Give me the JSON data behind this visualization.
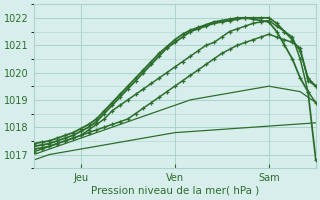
{
  "title": "",
  "xlabel": "Pression niveau de la mer( hPa )",
  "ylabel": "",
  "bg_color": "#d8eeec",
  "grid_color": "#aad4cc",
  "line_color": "#2d6e2d",
  "marker_color": "#2d6e2d",
  "xlim": [
    0,
    72
  ],
  "ylim": [
    1016.5,
    1022.5
  ],
  "yticks": [
    1017,
    1018,
    1019,
    1020,
    1021,
    1022
  ],
  "xtick_positions": [
    12,
    36,
    60,
    72
  ],
  "xtick_labels": [
    "Jeu",
    "Ven",
    "Sam",
    ""
  ],
  "series": [
    {
      "x": [
        0,
        2,
        4,
        6,
        8,
        10,
        12,
        14,
        16,
        18,
        20,
        22,
        24,
        26,
        28,
        30,
        32,
        34,
        36,
        38,
        40,
        42,
        44,
        46,
        48,
        50,
        52,
        54,
        56,
        58,
        60,
        62,
        64,
        66,
        68,
        70,
        72
      ],
      "y": [
        1016.8,
        1016.9,
        1017.0,
        1017.05,
        1017.1,
        1017.15,
        1017.2,
        1017.25,
        1017.3,
        1017.35,
        1017.4,
        1017.45,
        1017.5,
        1017.55,
        1017.6,
        1017.65,
        1017.7,
        1017.75,
        1017.8,
        1017.82,
        1017.84,
        1017.86,
        1017.88,
        1017.9,
        1017.92,
        1017.94,
        1017.96,
        1017.98,
        1018.0,
        1018.02,
        1018.04,
        1018.06,
        1018.08,
        1018.1,
        1018.12,
        1018.14,
        1018.16
      ],
      "marker": false,
      "linewidth": 0.9
    },
    {
      "x": [
        0,
        2,
        4,
        6,
        8,
        10,
        12,
        14,
        16,
        18,
        20,
        22,
        24,
        26,
        28,
        30,
        32,
        34,
        36,
        38,
        40,
        42,
        44,
        46,
        48,
        50,
        52,
        54,
        56,
        58,
        60,
        62,
        64,
        66,
        68,
        70,
        72
      ],
      "y": [
        1017.0,
        1017.1,
        1017.2,
        1017.3,
        1017.4,
        1017.5,
        1017.6,
        1017.7,
        1017.8,
        1017.9,
        1018.0,
        1018.1,
        1018.2,
        1018.3,
        1018.4,
        1018.5,
        1018.6,
        1018.7,
        1018.8,
        1018.9,
        1019.0,
        1019.05,
        1019.1,
        1019.15,
        1019.2,
        1019.25,
        1019.3,
        1019.35,
        1019.4,
        1019.45,
        1019.5,
        1019.45,
        1019.4,
        1019.35,
        1019.3,
        1019.1,
        1018.9
      ],
      "marker": false,
      "linewidth": 0.9
    },
    {
      "x": [
        0,
        2,
        4,
        6,
        8,
        10,
        12,
        14,
        16,
        18,
        20,
        22,
        24,
        26,
        28,
        30,
        32,
        34,
        36,
        38,
        40,
        42,
        44,
        46,
        48,
        50,
        52,
        54,
        56,
        58,
        60,
        62,
        64,
        66,
        68,
        70,
        72
      ],
      "y": [
        1017.1,
        1017.2,
        1017.3,
        1017.4,
        1017.5,
        1017.6,
        1017.7,
        1017.8,
        1017.9,
        1018.0,
        1018.1,
        1018.2,
        1018.3,
        1018.5,
        1018.7,
        1018.9,
        1019.1,
        1019.3,
        1019.5,
        1019.7,
        1019.9,
        1020.1,
        1020.3,
        1020.5,
        1020.7,
        1020.85,
        1021.0,
        1021.1,
        1021.2,
        1021.3,
        1021.4,
        1021.3,
        1021.2,
        1021.1,
        1020.9,
        1019.7,
        1019.5
      ],
      "marker": true,
      "linewidth": 1.1
    },
    {
      "x": [
        0,
        2,
        4,
        6,
        8,
        10,
        12,
        14,
        16,
        18,
        20,
        22,
        24,
        26,
        28,
        30,
        32,
        34,
        36,
        38,
        40,
        42,
        44,
        46,
        48,
        50,
        52,
        54,
        56,
        58,
        60,
        62,
        64,
        66,
        68,
        70,
        72
      ],
      "y": [
        1017.2,
        1017.25,
        1017.3,
        1017.4,
        1017.5,
        1017.6,
        1017.7,
        1017.9,
        1018.1,
        1018.3,
        1018.6,
        1018.8,
        1019.0,
        1019.2,
        1019.4,
        1019.6,
        1019.8,
        1020.0,
        1020.2,
        1020.4,
        1020.6,
        1020.8,
        1021.0,
        1021.1,
        1021.3,
        1021.5,
        1021.6,
        1021.7,
        1021.8,
        1021.85,
        1021.9,
        1021.7,
        1021.5,
        1021.3,
        1020.5,
        1019.3,
        1018.9
      ],
      "marker": true,
      "linewidth": 1.1
    },
    {
      "x": [
        0,
        2,
        4,
        6,
        8,
        10,
        12,
        14,
        16,
        18,
        20,
        22,
        24,
        26,
        28,
        30,
        32,
        34,
        36,
        38,
        40,
        42,
        44,
        46,
        48,
        50,
        52,
        54,
        56,
        58,
        60,
        62,
        64,
        66,
        68,
        70,
        72
      ],
      "y": [
        1017.3,
        1017.35,
        1017.4,
        1017.5,
        1017.6,
        1017.7,
        1017.85,
        1018.0,
        1018.2,
        1018.5,
        1018.8,
        1019.1,
        1019.4,
        1019.7,
        1020.0,
        1020.3,
        1020.6,
        1020.9,
        1021.1,
        1021.3,
        1021.5,
        1021.6,
        1021.7,
        1021.8,
        1021.85,
        1021.9,
        1021.95,
        1022.0,
        1022.0,
        1022.0,
        1022.0,
        1021.8,
        1021.5,
        1021.2,
        1020.8,
        1019.8,
        1019.5
      ],
      "marker": true,
      "linewidth": 1.3
    },
    {
      "x": [
        0,
        2,
        4,
        6,
        8,
        10,
        12,
        14,
        16,
        18,
        20,
        22,
        24,
        26,
        28,
        30,
        32,
        34,
        36,
        38,
        40,
        42,
        44,
        46,
        48,
        50,
        52,
        54,
        56,
        58,
        60,
        62,
        64,
        66,
        68,
        70,
        72
      ],
      "y": [
        1017.4,
        1017.45,
        1017.5,
        1017.6,
        1017.7,
        1017.8,
        1017.95,
        1018.1,
        1018.3,
        1018.6,
        1018.9,
        1019.2,
        1019.5,
        1019.8,
        1020.1,
        1020.4,
        1020.7,
        1020.95,
        1021.2,
        1021.4,
        1021.55,
        1021.65,
        1021.75,
        1021.85,
        1021.9,
        1021.95,
        1022.0,
        1022.0,
        1021.95,
        1021.9,
        1021.85,
        1021.5,
        1021.0,
        1020.5,
        1019.8,
        1019.3,
        1016.8
      ],
      "marker": true,
      "linewidth": 1.3
    }
  ]
}
